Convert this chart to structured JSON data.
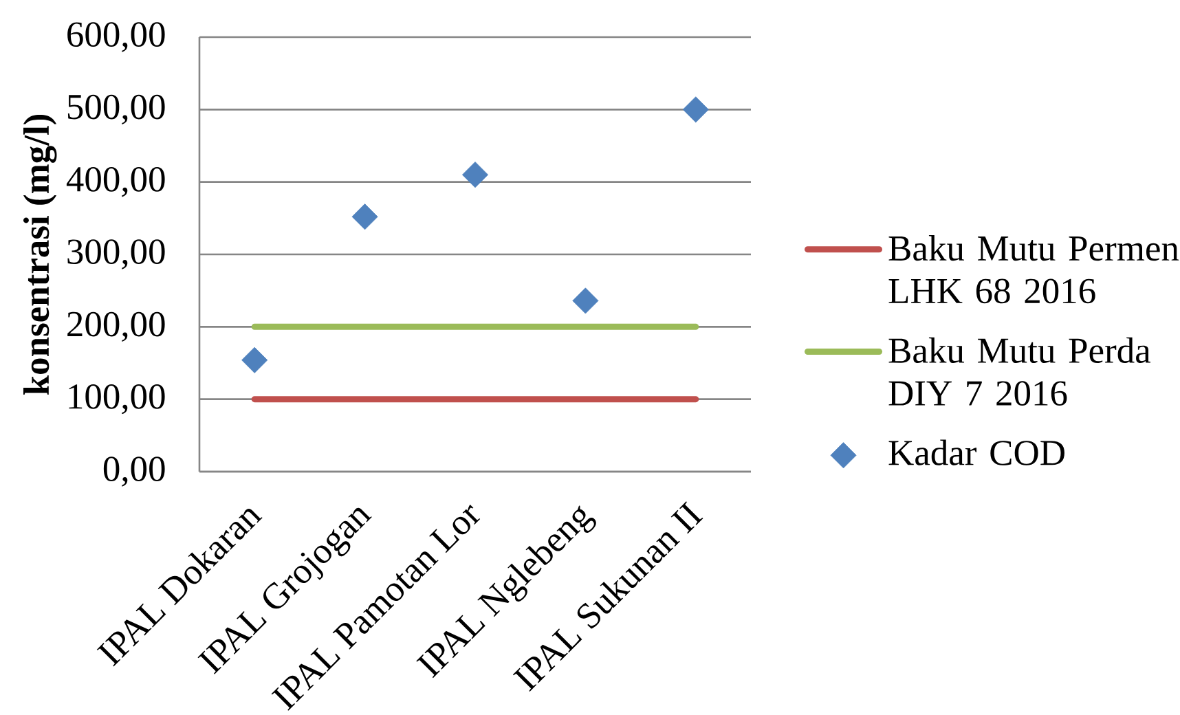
{
  "chart_data": {
    "type": "line",
    "categories": [
      "IPAL Dokaran",
      "IPAL Grojogan",
      "IPAL Pamotan Lor",
      "IPAL Nglebeng",
      "IPAL Sukunan II"
    ],
    "ylabel": "konsentrasi (mg/l)",
    "series": [
      {
        "name": "Baku Mutu Permen LHK 68 2016",
        "color": "#c0504d",
        "values": [
          100,
          100,
          100,
          100,
          100
        ]
      },
      {
        "name": "Baku Mutu Perda DIY 7 2016",
        "color": "#9bbb59",
        "values": [
          200,
          200,
          200,
          200,
          200
        ]
      },
      {
        "name": "Kadar COD",
        "type": "scatter",
        "marker": "diamond",
        "color": "#4f81bd",
        "values": [
          154,
          352,
          410,
          236,
          500
        ]
      }
    ],
    "ylim": [
      0,
      600
    ],
    "yticks": [
      {
        "value": 0,
        "label": "0,00"
      },
      {
        "value": 100,
        "label": "100,00"
      },
      {
        "value": 200,
        "label": "200,00"
      },
      {
        "value": 300,
        "label": "300,00"
      },
      {
        "value": 400,
        "label": "400,00"
      },
      {
        "value": 500,
        "label": "500,00"
      },
      {
        "value": 600,
        "label": "600,00"
      }
    ],
    "grid": "y",
    "legend": "right",
    "line_style": "solid"
  }
}
